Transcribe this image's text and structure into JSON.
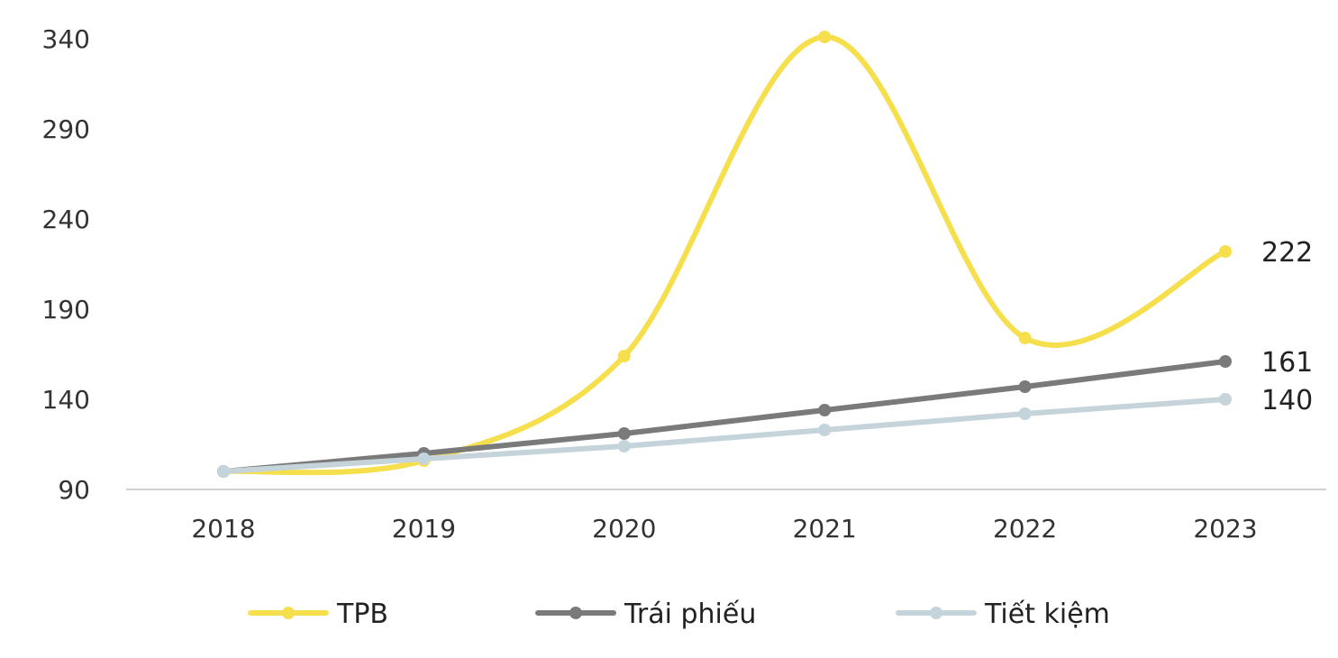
{
  "chart_data": {
    "type": "line",
    "x": [
      "2018",
      "2019",
      "2020",
      "2021",
      "2022",
      "2023"
    ],
    "yticks": [
      "340",
      "290",
      "240",
      "190",
      "140",
      "90"
    ],
    "ylim": [
      90,
      340
    ],
    "grid": false,
    "legend_position": "bottom",
    "series": [
      {
        "name": "TPB",
        "values": [
          100,
          106,
          164,
          341,
          174,
          222
        ],
        "color": "#f5df4d",
        "smooth": true,
        "end_label": "222"
      },
      {
        "name": "Trái phiếu",
        "values": [
          100,
          110,
          121,
          134,
          147,
          161
        ],
        "color": "#7a7a7a",
        "smooth": false,
        "end_label": "161"
      },
      {
        "name": "Tiết kiệm",
        "values": [
          100,
          107,
          114,
          123,
          132,
          140
        ],
        "color": "#c5d3da",
        "smooth": false,
        "end_label": "140"
      }
    ]
  }
}
